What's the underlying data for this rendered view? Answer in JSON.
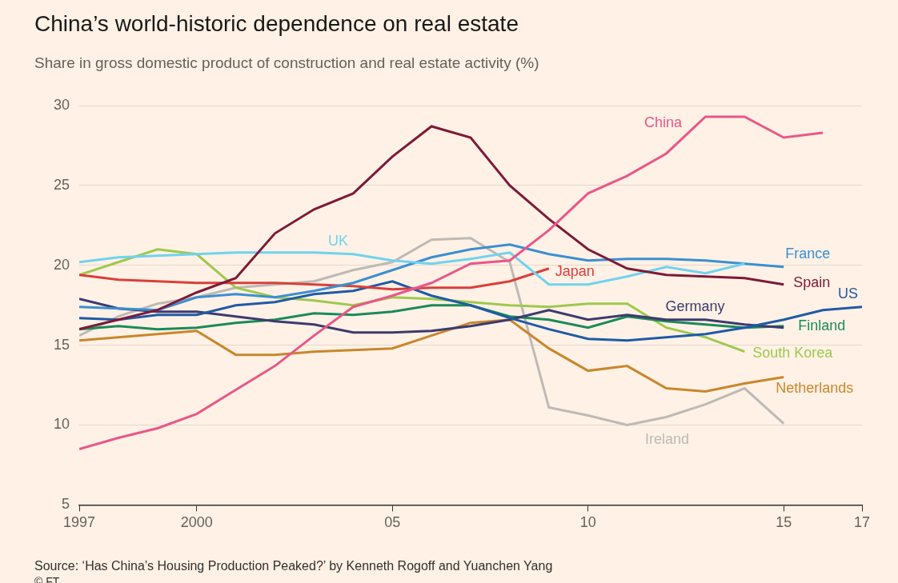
{
  "chart_data": {
    "type": "line",
    "title": "China’s world-historic dependence on real estate",
    "subtitle": "Share in gross domestic product of construction and real estate activity (%)",
    "source": "Source: ‘Has China’s Housing Production Peaked?’ by Kenneth Rogoff and Yuanchen Yang",
    "credit": "© FT",
    "x": [
      1997,
      1998,
      1999,
      2000,
      2001,
      2002,
      2003,
      2004,
      2005,
      2006,
      2007,
      2008,
      2009,
      2010,
      2011,
      2012,
      2013,
      2014,
      2015,
      2016,
      2017
    ],
    "xlim": [
      1997,
      2017
    ],
    "xticks": [
      1997,
      2000,
      {
        "value": 2005,
        "label": "05"
      },
      {
        "value": 2010,
        "label": "10"
      },
      {
        "value": 2015,
        "label": "15"
      },
      {
        "value": 2017,
        "label": "17"
      }
    ],
    "ylim": [
      5,
      30
    ],
    "yticks": [
      5,
      10,
      15,
      20,
      25,
      30
    ],
    "grid": true,
    "series": [
      {
        "name": "China",
        "color": "#e9578a",
        "values": [
          8.5,
          9.2,
          9.8,
          10.7,
          12.2,
          13.7,
          15.6,
          17.4,
          18.1,
          18.9,
          20.1,
          20.3,
          22.2,
          24.5,
          25.6,
          27.0,
          29.3,
          29.3,
          28.0,
          28.3,
          null
        ]
      },
      {
        "name": "Spain",
        "color": "#7d1a38",
        "values": [
          16.0,
          16.6,
          17.2,
          18.3,
          19.2,
          22.0,
          23.5,
          24.5,
          26.8,
          28.7,
          28.0,
          25.0,
          22.9,
          21.0,
          19.8,
          19.4,
          19.3,
          19.2,
          18.8,
          null,
          null
        ]
      },
      {
        "name": "UK",
        "color": "#6fd3ef",
        "values": [
          20.2,
          20.5,
          20.6,
          20.7,
          20.8,
          20.8,
          20.8,
          20.7,
          20.3,
          20.1,
          20.4,
          20.8,
          18.8,
          18.8,
          19.3,
          19.9,
          19.5,
          20.1,
          null,
          null,
          null
        ]
      },
      {
        "name": "France",
        "color": "#3a8fd1",
        "values": [
          17.4,
          17.3,
          17.2,
          18.0,
          18.2,
          18.0,
          18.4,
          18.9,
          19.7,
          20.5,
          21.0,
          21.3,
          20.7,
          20.3,
          20.4,
          20.4,
          20.3,
          20.1,
          19.9,
          null,
          null
        ]
      },
      {
        "name": "Japan",
        "color": "#d8403c",
        "values": [
          19.4,
          19.1,
          19.0,
          18.9,
          18.9,
          18.9,
          18.8,
          18.7,
          18.5,
          18.6,
          18.6,
          19.0,
          19.8,
          null,
          null,
          null,
          null,
          null,
          null,
          null,
          null
        ]
      },
      {
        "name": "US",
        "color": "#1f5aa6",
        "values": [
          16.7,
          16.6,
          16.9,
          16.9,
          17.5,
          17.7,
          18.2,
          18.4,
          19.0,
          18.1,
          17.5,
          16.7,
          16.0,
          15.4,
          15.3,
          15.5,
          15.7,
          16.1,
          16.6,
          17.2,
          17.4
        ]
      },
      {
        "name": "Germany",
        "color": "#3d3a6e",
        "values": [
          17.9,
          17.3,
          17.1,
          17.1,
          16.8,
          16.5,
          16.3,
          15.8,
          15.8,
          15.9,
          16.2,
          16.6,
          17.2,
          16.6,
          16.9,
          16.6,
          16.6,
          16.3,
          16.1,
          null,
          null
        ]
      },
      {
        "name": "Finland",
        "color": "#1a8a5a",
        "values": [
          16.0,
          16.2,
          16.0,
          16.1,
          16.4,
          16.6,
          17.0,
          16.9,
          17.1,
          17.5,
          17.5,
          16.8,
          16.6,
          16.1,
          16.8,
          16.5,
          16.3,
          16.1,
          16.2,
          null,
          null
        ]
      },
      {
        "name": "South Korea",
        "color": "#9dc94e",
        "values": [
          19.4,
          20.2,
          21.0,
          20.7,
          18.6,
          18.0,
          17.8,
          17.5,
          18.0,
          17.9,
          17.7,
          17.5,
          17.4,
          17.6,
          17.6,
          16.1,
          15.5,
          14.6,
          null,
          null,
          null
        ]
      },
      {
        "name": "Netherlands",
        "color": "#c8872d",
        "values": [
          15.3,
          15.5,
          15.7,
          15.9,
          14.4,
          14.4,
          14.6,
          14.7,
          14.8,
          15.6,
          16.4,
          16.6,
          14.8,
          13.4,
          13.7,
          12.3,
          12.1,
          12.6,
          13.0,
          null,
          null
        ]
      },
      {
        "name": "Ireland",
        "color": "#bdbab6",
        "values": [
          15.6,
          16.8,
          17.6,
          18.0,
          18.6,
          18.8,
          19.0,
          19.7,
          20.2,
          21.6,
          21.7,
          20.2,
          11.1,
          10.6,
          10.0,
          10.5,
          11.3,
          12.3,
          10.1,
          null,
          null
        ]
      }
    ]
  }
}
